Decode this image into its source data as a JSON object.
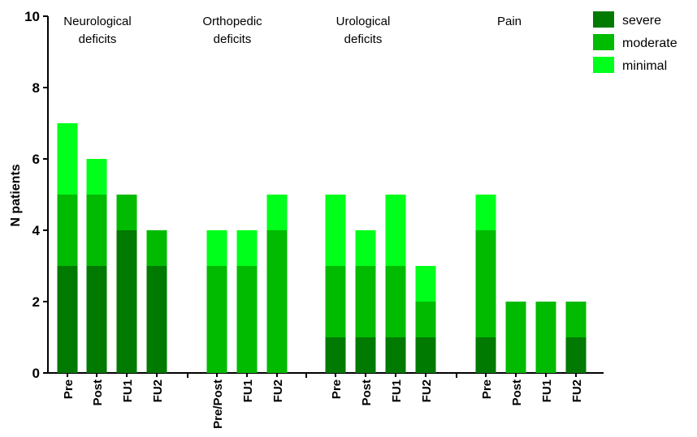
{
  "chart_data": {
    "type": "bar",
    "stacked": true,
    "ylabel": "N patients",
    "ylim": [
      0,
      10
    ],
    "yticks": [
      0,
      2,
      4,
      6,
      8,
      10
    ],
    "legend_position": "top-right",
    "series": [
      {
        "name": "severe",
        "color": "#007a00"
      },
      {
        "name": "moderate",
        "color": "#00bb00"
      },
      {
        "name": "minimal",
        "color": "#00ff1a"
      }
    ],
    "groups": [
      {
        "title": [
          "Neurological",
          "deficits"
        ],
        "bars": [
          {
            "label": "Pre",
            "severe": 3,
            "moderate": 2,
            "minimal": 2
          },
          {
            "label": "Post",
            "severe": 3,
            "moderate": 2,
            "minimal": 1
          },
          {
            "label": "FU1",
            "severe": 4,
            "moderate": 1,
            "minimal": 0
          },
          {
            "label": "FU2",
            "severe": 3,
            "moderate": 1,
            "minimal": 0
          }
        ]
      },
      {
        "title": [
          "Orthopedic",
          "deficits"
        ],
        "bars": [
          {
            "label": "Pre/Post",
            "severe": 0,
            "moderate": 3,
            "minimal": 1
          },
          {
            "label": "FU1",
            "severe": 0,
            "moderate": 3,
            "minimal": 1
          },
          {
            "label": "FU2",
            "severe": 0,
            "moderate": 4,
            "minimal": 1
          }
        ]
      },
      {
        "title": [
          "Urological",
          "deficits"
        ],
        "bars": [
          {
            "label": "Pre",
            "severe": 1,
            "moderate": 2,
            "minimal": 2
          },
          {
            "label": "Post",
            "severe": 1,
            "moderate": 2,
            "minimal": 1
          },
          {
            "label": "FU1",
            "severe": 1,
            "moderate": 2,
            "minimal": 2
          },
          {
            "label": "FU2",
            "severe": 1,
            "moderate": 1,
            "minimal": 1
          }
        ]
      },
      {
        "title": [
          "Pain"
        ],
        "bars": [
          {
            "label": "Pre",
            "severe": 1,
            "moderate": 3,
            "minimal": 1
          },
          {
            "label": "Post",
            "severe": 0,
            "moderate": 2,
            "minimal": 0
          },
          {
            "label": "FU1",
            "severe": 0,
            "moderate": 2,
            "minimal": 0
          },
          {
            "label": "FU2",
            "severe": 1,
            "moderate": 1,
            "minimal": 0
          }
        ]
      }
    ]
  }
}
